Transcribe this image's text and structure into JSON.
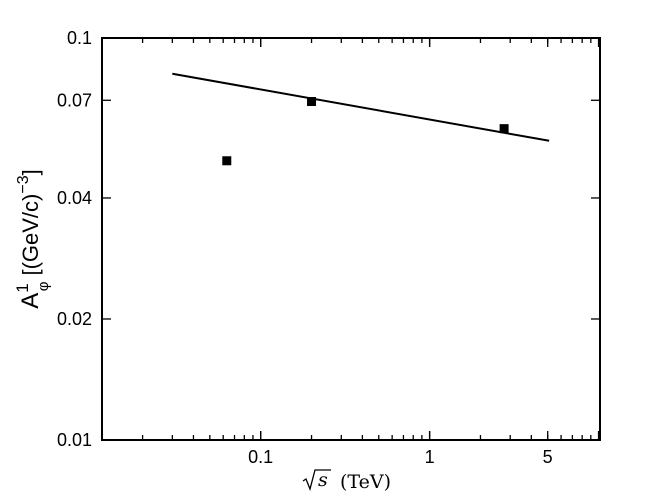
{
  "chart_data": {
    "type": "scatter",
    "x_scale": "log",
    "y_scale": "log",
    "xlim": [
      0.0115,
      10.2
    ],
    "ylim": [
      0.01,
      0.1
    ],
    "x_ticks": [
      {
        "value": 0.1,
        "label": "0.1"
      },
      {
        "value": 1,
        "label": "1"
      },
      {
        "value": 5,
        "label": "5"
      }
    ],
    "y_ticks": [
      {
        "value": 0.01,
        "label": "0.01"
      },
      {
        "value": 0.02,
        "label": "0.02"
      },
      {
        "value": 0.04,
        "label": "0.04"
      },
      {
        "value": 0.07,
        "label": "0.07"
      },
      {
        "value": 0.1,
        "label": "0.1"
      }
    ],
    "xlabel_symbol": "s",
    "xlabel_unit": "(TeV)",
    "ylabel_main": "A",
    "ylabel_sup": "1",
    "ylabel_sub": "φ",
    "ylabel_unit": "[(GeV/c)",
    "ylabel_unit_exp": "−3",
    "ylabel_close": "]",
    "points": [
      {
        "x": 0.063,
        "y": 0.0495
      },
      {
        "x": 0.2,
        "y": 0.0695
      },
      {
        "x": 2.76,
        "y": 0.0595
      }
    ],
    "fit_line": {
      "x": [
        0.03,
        5.1
      ],
      "y": [
        0.0815,
        0.0555
      ]
    },
    "grid": false,
    "legend": "none",
    "marker": "square",
    "colors": {
      "marker": "#000000",
      "line": "#000000",
      "axes": "#000000"
    }
  }
}
